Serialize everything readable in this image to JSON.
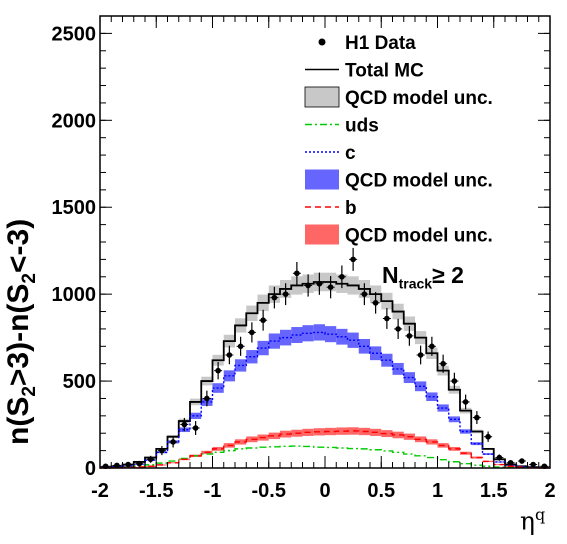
{
  "chart_data": {
    "type": "histogram",
    "xlabel_symbol": "η",
    "xlabel_sup": "q",
    "ylabel_a": "n(S",
    "ylabel_sub_a": "2",
    "ylabel_b": ">3)-n(S",
    "ylabel_sub_b": "2",
    "ylabel_c": "<-3)",
    "annotation_main": "N",
    "annotation_sub": "track",
    "annotation_tail": "≥ 2",
    "xlim": [
      -2,
      2
    ],
    "ylim": [
      0,
      2600
    ],
    "x_ticks": [
      "-2",
      "-1.5",
      "-1",
      "-0.5",
      "0",
      "0.5",
      "1",
      "1.5",
      "2"
    ],
    "x_tick_values": [
      -2,
      -1.5,
      -1,
      -0.5,
      0,
      0.5,
      1,
      1.5,
      2
    ],
    "y_ticks": [
      "0",
      "500",
      "1000",
      "1500",
      "2000",
      "2500"
    ],
    "y_tick_values": [
      0,
      500,
      1000,
      1500,
      2000,
      2500
    ],
    "bin_edges": [
      -2.0,
      -1.9,
      -1.8,
      -1.7,
      -1.6,
      -1.5,
      -1.4,
      -1.3,
      -1.2,
      -1.1,
      -1.0,
      -0.9,
      -0.8,
      -0.7,
      -0.6,
      -0.5,
      -0.4,
      -0.3,
      -0.2,
      -0.1,
      0.0,
      0.1,
      0.2,
      0.3,
      0.4,
      0.5,
      0.6,
      0.7,
      0.8,
      0.9,
      1.0,
      1.1,
      1.2,
      1.3,
      1.4,
      1.5,
      1.6,
      1.7,
      1.8,
      1.9,
      2.0
    ],
    "data_points": {
      "name": "H1 Data",
      "x": [
        -1.95,
        -1.85,
        -1.75,
        -1.65,
        -1.55,
        -1.45,
        -1.35,
        -1.25,
        -1.15,
        -1.05,
        -0.95,
        -0.85,
        -0.75,
        -0.65,
        -0.55,
        -0.45,
        -0.35,
        -0.25,
        -0.15,
        -0.05,
        0.05,
        0.15,
        0.25,
        0.35,
        0.45,
        0.55,
        0.65,
        0.75,
        0.85,
        0.95,
        1.05,
        1.15,
        1.25,
        1.35,
        1.45,
        1.55,
        1.65,
        1.75,
        1.85,
        1.95
      ],
      "y": [
        10,
        15,
        20,
        25,
        50,
        100,
        150,
        250,
        230,
        400,
        560,
        650,
        700,
        780,
        850,
        980,
        1000,
        1120,
        1050,
        1060,
        1040,
        1100,
        1200,
        1000,
        950,
        860,
        800,
        760,
        650,
        700,
        600,
        500,
        380,
        290,
        180,
        60,
        30,
        40,
        20,
        10
      ],
      "err": [
        12,
        12,
        14,
        16,
        20,
        26,
        32,
        38,
        40,
        45,
        50,
        53,
        55,
        58,
        60,
        62,
        63,
        65,
        64,
        64,
        64,
        65,
        66,
        63,
        62,
        60,
        58,
        57,
        54,
        55,
        52,
        48,
        42,
        37,
        30,
        18,
        14,
        15,
        12,
        10
      ]
    },
    "series": [
      {
        "name": "Total MC",
        "color": "#000000",
        "style": "solid",
        "values": [
          5,
          10,
          20,
          35,
          60,
          110,
          180,
          270,
          380,
          500,
          620,
          730,
          820,
          890,
          950,
          1000,
          1030,
          1050,
          1060,
          1070,
          1070,
          1060,
          1050,
          1030,
          1000,
          960,
          900,
          830,
          750,
          660,
          560,
          450,
          330,
          210,
          110,
          50,
          20,
          10,
          5,
          3
        ],
        "band": {
          "name": "QCD model unc.",
          "color": "#c8c8c8",
          "rel_err": 0.05
        }
      },
      {
        "name": "uds",
        "color": "#00cc00",
        "style": "dashdot",
        "values": [
          2,
          4,
          6,
          10,
          18,
          28,
          40,
          55,
          70,
          80,
          90,
          100,
          110,
          115,
          120,
          122,
          125,
          126,
          124,
          120,
          118,
          115,
          112,
          110,
          105,
          98,
          90,
          80,
          70,
          60,
          48,
          36,
          25,
          16,
          10,
          5,
          3,
          2,
          1,
          1
        ],
        "band": null
      },
      {
        "name": "c",
        "color": "#0000ff",
        "style": "dotted",
        "values": [
          3,
          6,
          12,
          22,
          45,
          90,
          150,
          220,
          300,
          380,
          460,
          530,
          590,
          640,
          690,
          730,
          750,
          765,
          775,
          780,
          770,
          755,
          735,
          700,
          660,
          620,
          570,
          520,
          470,
          410,
          345,
          280,
          210,
          140,
          80,
          35,
          15,
          8,
          4,
          2
        ],
        "band": {
          "name": "QCD model unc.",
          "color": "#6666ff",
          "rel_err": 0.06
        }
      },
      {
        "name": "b",
        "color": "#ff0000",
        "style": "dashed",
        "values": [
          1,
          2,
          4,
          6,
          10,
          18,
          30,
          50,
          70,
          90,
          110,
          130,
          150,
          165,
          175,
          185,
          195,
          200,
          205,
          208,
          210,
          212,
          213,
          210,
          205,
          198,
          190,
          180,
          165,
          150,
          130,
          110,
          85,
          60,
          38,
          20,
          10,
          5,
          2,
          1
        ],
        "band": {
          "name": "QCD model unc.",
          "color": "#ff6666",
          "rel_err": 0.1
        }
      }
    ],
    "legend_position": "top-right",
    "legend": [
      {
        "label": "H1 Data",
        "marker": "point"
      },
      {
        "label": "Total MC",
        "marker": "line",
        "color": "#000000",
        "style": "solid"
      },
      {
        "label": "QCD model unc.",
        "marker": "box",
        "color": "#c8c8c8"
      },
      {
        "label": "uds",
        "marker": "line",
        "color": "#00cc00",
        "style": "dashdot"
      },
      {
        "label": "c",
        "marker": "line",
        "color": "#0000ff",
        "style": "dotted"
      },
      {
        "label": "QCD model unc.",
        "marker": "box",
        "color": "#6666ff"
      },
      {
        "label": "b",
        "marker": "line",
        "color": "#ff0000",
        "style": "dashed"
      },
      {
        "label": "QCD model unc.",
        "marker": "box",
        "color": "#ff6666"
      }
    ]
  }
}
